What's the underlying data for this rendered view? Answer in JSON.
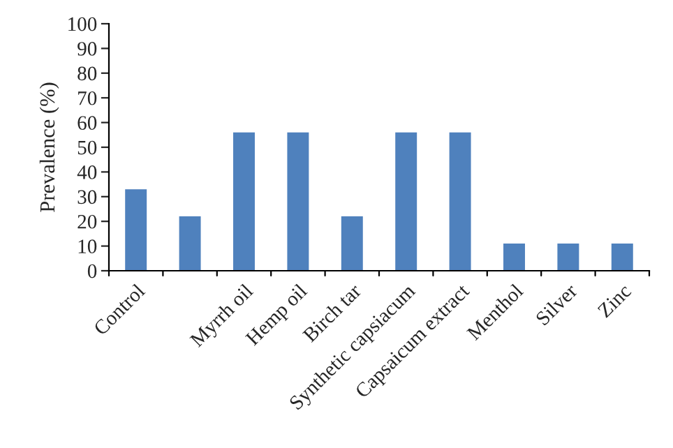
{
  "chart_data": {
    "type": "bar",
    "ylabel": "Prevalence (%)",
    "categories": [
      "Control",
      null,
      "Myrrh oil",
      "Hemp oil",
      "Birch tar",
      "Synthetic capsiacum",
      "Capsaicum extract",
      "Menthol",
      "Silver",
      "Zinc"
    ],
    "values": [
      33,
      22,
      56,
      56,
      22,
      56,
      56,
      11,
      11,
      11
    ],
    "color": "#4f81bd",
    "ylim": [
      0,
      100
    ],
    "yticks": [
      0,
      10,
      20,
      30,
      40,
      50,
      60,
      70,
      80,
      90,
      100
    ],
    "grid": false,
    "legend": false
  }
}
